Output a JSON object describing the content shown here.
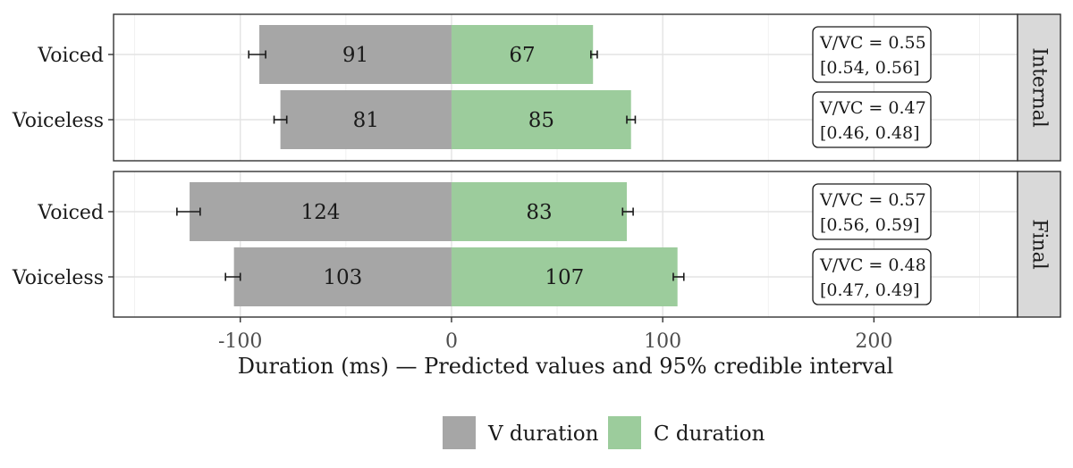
{
  "chart_data": {
    "type": "bar",
    "orientation": "horizontal",
    "stacked": "diverging",
    "xlabel": "Duration (ms) — Predicted values and 95% credible interval",
    "xlim": [
      -160,
      268
    ],
    "x_ticks": [
      -100,
      0,
      100,
      200
    ],
    "x_tick_labels": [
      "-100",
      "0",
      "100",
      "200"
    ],
    "categories": [
      "Voiced",
      "Voiceless"
    ],
    "grid": true,
    "legend_position": "bottom",
    "series": [
      {
        "key": "V",
        "name": "V duration",
        "color": "#a6a6a6"
      },
      {
        "key": "C",
        "name": "C duration",
        "color": "#9ccc9c"
      }
    ],
    "panels": [
      {
        "label": "Internal",
        "rows": [
          {
            "category": "Voiced",
            "V": 91,
            "V_ci": [
              88,
              96
            ],
            "C": 67,
            "C_ci": [
              66,
              69
            ],
            "V_label": "91",
            "C_label": "67",
            "ratio_text": "V/VC = 0.55",
            "ci_text": "[0.54, 0.56]"
          },
          {
            "category": "Voiceless",
            "V": 81,
            "V_ci": [
              78,
              84
            ],
            "C": 85,
            "C_ci": [
              83,
              87
            ],
            "V_label": "81",
            "C_label": "85",
            "ratio_text": "V/VC = 0.47",
            "ci_text": "[0.46, 0.48]"
          }
        ]
      },
      {
        "label": "Final",
        "rows": [
          {
            "category": "Voiced",
            "V": 124,
            "V_ci": [
              119,
              130
            ],
            "C": 83,
            "C_ci": [
              81,
              86
            ],
            "V_label": "124",
            "C_label": "83",
            "ratio_text": "V/VC = 0.57",
            "ci_text": "[0.56, 0.59]"
          },
          {
            "category": "Voiceless",
            "V": 103,
            "V_ci": [
              100,
              107
            ],
            "C": 107,
            "C_ci": [
              105,
              110
            ],
            "V_label": "103",
            "C_label": "107",
            "ratio_text": "V/VC = 0.48",
            "ci_text": "[0.47, 0.49]"
          }
        ]
      }
    ]
  }
}
